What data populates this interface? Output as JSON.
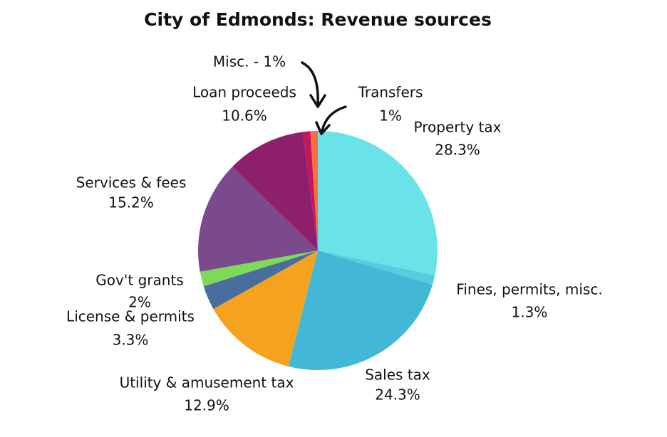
{
  "chart_data": {
    "type": "pie",
    "title": "City of Edmonds: Revenue sources",
    "categories": [
      "Property tax",
      "Fines, permits, misc.",
      "Sales tax",
      "Utility & amusement tax",
      "License & permits",
      "Gov't grants",
      "Services & fees",
      "Loan proceeds",
      "Misc. - 1%",
      "Transfers"
    ],
    "values": [
      28.3,
      1.3,
      24.3,
      12.9,
      3.3,
      2,
      15.2,
      10.6,
      1,
      1
    ],
    "value_labels": [
      "28.3%",
      "1.3%",
      "24.3%",
      "12.9%",
      "3.3%",
      "2%",
      "15.2%",
      "10.6%",
      null,
      "1%"
    ],
    "colors": [
      "#6ae3e8",
      "#55cde0",
      "#42b8d6",
      "#f5a31f",
      "#4a6da0",
      "#7ed957",
      "#7b4a8c",
      "#8e1f6c",
      "#c2185b",
      "#ff6b3d"
    ]
  }
}
